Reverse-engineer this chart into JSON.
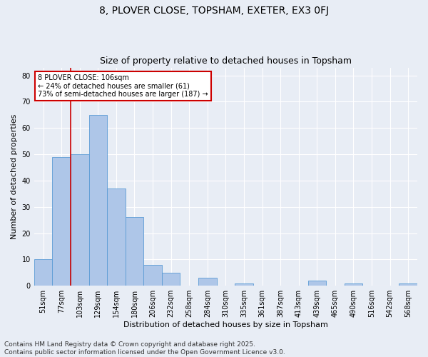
{
  "title": "8, PLOVER CLOSE, TOPSHAM, EXETER, EX3 0FJ",
  "subtitle": "Size of property relative to detached houses in Topsham",
  "xlabel": "Distribution of detached houses by size in Topsham",
  "ylabel": "Number of detached properties",
  "categories": [
    "51sqm",
    "77sqm",
    "103sqm",
    "129sqm",
    "154sqm",
    "180sqm",
    "206sqm",
    "232sqm",
    "258sqm",
    "284sqm",
    "310sqm",
    "335sqm",
    "361sqm",
    "387sqm",
    "413sqm",
    "439sqm",
    "465sqm",
    "490sqm",
    "516sqm",
    "542sqm",
    "568sqm"
  ],
  "values": [
    10,
    49,
    50,
    65,
    37,
    26,
    8,
    5,
    0,
    3,
    0,
    1,
    0,
    0,
    0,
    2,
    0,
    1,
    0,
    0,
    1
  ],
  "bar_color": "#aec6e8",
  "bar_edge_color": "#5b9bd5",
  "vline_x": 1.5,
  "annotation_text": "8 PLOVER CLOSE: 106sqm\n← 24% of detached houses are smaller (61)\n73% of semi-detached houses are larger (187) →",
  "annotation_box_color": "#ffffff",
  "annotation_box_edge_color": "#cc0000",
  "annotation_text_color": "#000000",
  "vline_color": "#cc0000",
  "ylim": [
    0,
    83
  ],
  "yticks": [
    0,
    10,
    20,
    30,
    40,
    50,
    60,
    70,
    80
  ],
  "background_color": "#e8edf5",
  "grid_color": "#ffffff",
  "footer_line1": "Contains HM Land Registry data © Crown copyright and database right 2025.",
  "footer_line2": "Contains public sector information licensed under the Open Government Licence v3.0.",
  "title_fontsize": 10,
  "subtitle_fontsize": 9,
  "xlabel_fontsize": 8,
  "ylabel_fontsize": 8,
  "tick_fontsize": 7,
  "footer_fontsize": 6.5
}
